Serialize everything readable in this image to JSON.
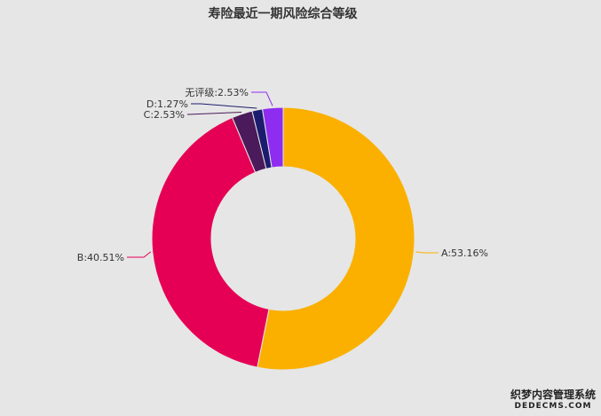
{
  "chart_data": {
    "type": "pie",
    "title": "寿险最近一期风险综合等级",
    "donut": true,
    "categories": [
      "A",
      "B",
      "C",
      "D",
      "无评级"
    ],
    "values": [
      53.16,
      40.51,
      2.53,
      1.27,
      2.53
    ],
    "labels": [
      "A:53.16%",
      "B:40.51%",
      "C:2.53%",
      "D:1.27%",
      "无评级:2.53%"
    ],
    "colors": [
      "#fbb000",
      "#e60055",
      "#4a1a5a",
      "#1c1c6e",
      "#8e2cf0"
    ],
    "legend": "none"
  },
  "watermark": {
    "line1": "织梦内容管理系统",
    "line2": "DEDECMS.COM"
  }
}
